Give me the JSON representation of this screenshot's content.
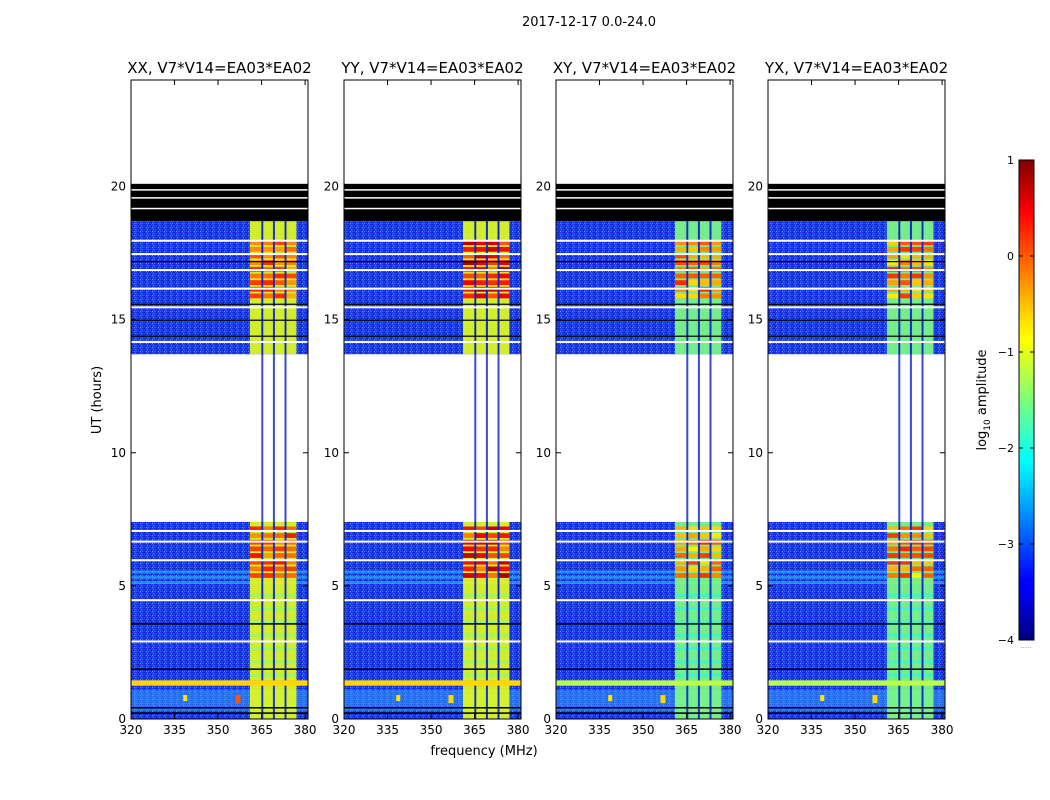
{
  "figure": {
    "suptitle": "2017-12-17 0.0-24.0",
    "xlabel": "frequency (MHz)",
    "ylabel": "UT (hours)"
  },
  "colorbar": {
    "label_prefix": "log",
    "label_sub": "10",
    "label_suffix": " amplitude",
    "ticks": [
      1,
      0,
      -1,
      -2,
      -3,
      -4
    ],
    "tick_labels": [
      "1",
      "0",
      "−1",
      "−2",
      "−3",
      "−4"
    ],
    "range": [
      -4,
      1
    ],
    "colormap": "jet",
    "extra_mark": "....."
  },
  "chart_data": {
    "type": "heatmap",
    "title": "2017-12-17 0.0-24.0",
    "xlabel": "frequency (MHz)",
    "ylabel": "UT (hours)",
    "xlim": [
      320,
      381
    ],
    "ylim": [
      0,
      24
    ],
    "xticks": [
      320,
      335,
      350,
      365,
      380
    ],
    "yticks": [
      0,
      5,
      10,
      15,
      20
    ],
    "value_range": [
      -4,
      1
    ],
    "data_segments_ut": [
      [
        0,
        1.45
      ],
      [
        1.45,
        7.4
      ],
      [
        13.7,
        18.7
      ]
    ],
    "flagged_black_ut": [
      18.7,
      20.1
    ],
    "blank_ut": [
      [
        7.4,
        13.7
      ],
      [
        20.1,
        24
      ]
    ],
    "hot_band_mhz": [
      360,
      377
    ],
    "panels": [
      {
        "title": "XX, V7*V14=EA03*EA02",
        "pol": "XX",
        "typical_log_amp": {
          "background": -3.2,
          "band": -1.0,
          "peak": 0.3
        }
      },
      {
        "title": "YY, V7*V14=EA03*EA02",
        "pol": "YY",
        "typical_log_amp": {
          "background": -3.2,
          "band": -1.0,
          "peak": 0.8
        }
      },
      {
        "title": "XY, V7*V14=EA03*EA02",
        "pol": "XY",
        "typical_log_amp": {
          "background": -3.2,
          "band": -1.5,
          "peak": 0.2
        }
      },
      {
        "title": "YX, V7*V14=EA03*EA02",
        "pol": "YX",
        "typical_log_amp": {
          "background": -3.2,
          "band": -1.5,
          "peak": 0.2
        }
      }
    ]
  }
}
